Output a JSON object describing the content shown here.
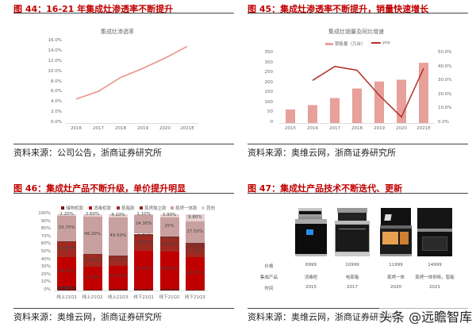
{
  "figures": {
    "fig44": {
      "title": "图 44：16-21 年集成灶渗透率不断提升",
      "source": "资料来源：公司公告，浙商证券研究所"
    },
    "fig45": {
      "title": "图 45：集成灶渗透率不断提升，销量快速增长",
      "source": "资料来源：奥维云网，浙商证券研究所"
    },
    "fig46": {
      "title": "图 46：集成灶产品不断升级，单价提升明显",
      "source": "资料来源：奥维云网，浙商证券研究所"
    },
    "fig47": {
      "title": "图 47：集成灶产品技术不断迭代、更新",
      "source": "资料来源：奥维云网，浙商证券研究所",
      "table": {
        "row_labels": [
          "价格",
          "集成产品",
          "时间"
        ],
        "columns": [
          {
            "price": "6999",
            "product": "消毒柜",
            "year": "2015"
          },
          {
            "price": "10999",
            "product": "电蒸箱",
            "year": "2017"
          },
          {
            "price": "11999",
            "product": "蒸烤一体",
            "year": "2020"
          },
          {
            "price": "14999",
            "product": "蒸烤一体侧吸，智能",
            "year": "2021"
          }
        ]
      }
    }
  },
  "watermark": "头条 @远瞻智库",
  "chart_data": [
    {
      "type": "line",
      "title": "集成灶渗透率",
      "categories": [
        "2016",
        "2017",
        "2018",
        "2019",
        "2020",
        "2021E"
      ],
      "values": [
        4.7,
        6.2,
        8.9,
        10.7,
        12.7,
        15.0
      ],
      "ylabel": "",
      "xlabel": "",
      "ylim": [
        0,
        16
      ],
      "yticks": [
        "0.0%",
        "2.0%",
        "4.0%",
        "6.0%",
        "8.0%",
        "10.0%",
        "12.0%",
        "14.0%",
        "16.0%"
      ],
      "color": "#e8948a"
    },
    {
      "type": "bar+line",
      "title": "集成灶销量及同比增速",
      "categories": [
        "2015",
        "2016",
        "2017",
        "2018",
        "2019",
        "2020",
        "2021E"
      ],
      "series": [
        {
          "name": "销售量（万台）",
          "type": "bar",
          "axis": "left",
          "values": [
            68,
            90,
            125,
            173,
            208,
            217,
            302
          ],
          "color": "#e8a09a"
        },
        {
          "name": "yoy",
          "type": "line",
          "axis": "right",
          "values": [
            null,
            30.5,
            40.5,
            37.8,
            19.9,
            4.3,
            39.2
          ],
          "color": "#b0322a"
        }
      ],
      "ylim_left": [
        0,
        350
      ],
      "yticks_left": [
        "0",
        "50",
        "100",
        "150",
        "200",
        "250",
        "300",
        "350"
      ],
      "ylim_right": [
        0,
        50
      ],
      "yticks_right": [
        "0.0%",
        "10.0%",
        "20.0%",
        "30.0%",
        "40.0%",
        "50.0%"
      ],
      "legend_position": "top"
    },
    {
      "type": "stacked-bar",
      "title": "",
      "categories": [
        "线上21Q1",
        "线上21Q2",
        "线上21Q3",
        "线下21Q1",
        "线下21Q2",
        "线下21Q3"
      ],
      "series": [
        {
          "name": "储物柜款",
          "color": "#7b1010",
          "values": [
            4.8,
            0.7,
            2.0,
            2.0,
            2.4,
            1.3
          ],
          "labels": [
            "4.80%",
            "0.70%",
            "2.00%",
            "2.00%",
            "2.40%",
            "1.30%"
          ]
        },
        {
          "name": "消毒柜款",
          "color": "#c00000",
          "values": [
            39.2,
            29.3,
            30.1,
            50.2,
            48.6,
            42.2
          ],
          "labels": [
            "39.20%",
            "29.30%",
            "30.10%",
            "50.20%",
            "48.60%",
            "42.20%"
          ]
        },
        {
          "name": "蒸箱款",
          "color": "#a02a22",
          "values": [
            19.8,
            15.4,
            11.7,
            18.6,
            16.3,
            12.2
          ],
          "labels": [
            "19.80%",
            "15.40%",
            "11.70%",
            "18.60%",
            "16.30%",
            "12.20%"
          ]
        },
        {
          "name": "蒸烤独立款",
          "color": "#8c2c24",
          "values": [
            0.3,
            0.9,
            1.7,
            3.3,
            3.9,
            7.1
          ],
          "labels": [
            "0.30%",
            "0.90%",
            "1.70%",
            "3.30%",
            "3.90%",
            "7.10%"
          ]
        },
        {
          "name": "蒸烤一体款",
          "color": "#c9a0a0",
          "values": [
            33.7,
            48.2,
            49.5,
            24.3,
            25.0,
            27.5
          ],
          "labels": [
            "33.70%",
            "48.20%",
            "49.50%",
            "24.30%",
            "25%",
            "27.50%"
          ]
        },
        {
          "name": "其他",
          "color": "#e6d0d0",
          "values": [
            2.2,
            2.6,
            4.1,
            1.1,
            3.9,
            9.8
          ],
          "labels": [
            "2.20%",
            "2.60%",
            "4.10%",
            "1.10%",
            "3.90%",
            "9.80%"
          ]
        }
      ],
      "ylim": [
        0,
        100
      ],
      "yticks": [
        "0%",
        "10%",
        "20%",
        "30%",
        "40%",
        "50%",
        "60%",
        "70%",
        "80%",
        "90%",
        "100%"
      ],
      "legend_position": "top"
    }
  ]
}
